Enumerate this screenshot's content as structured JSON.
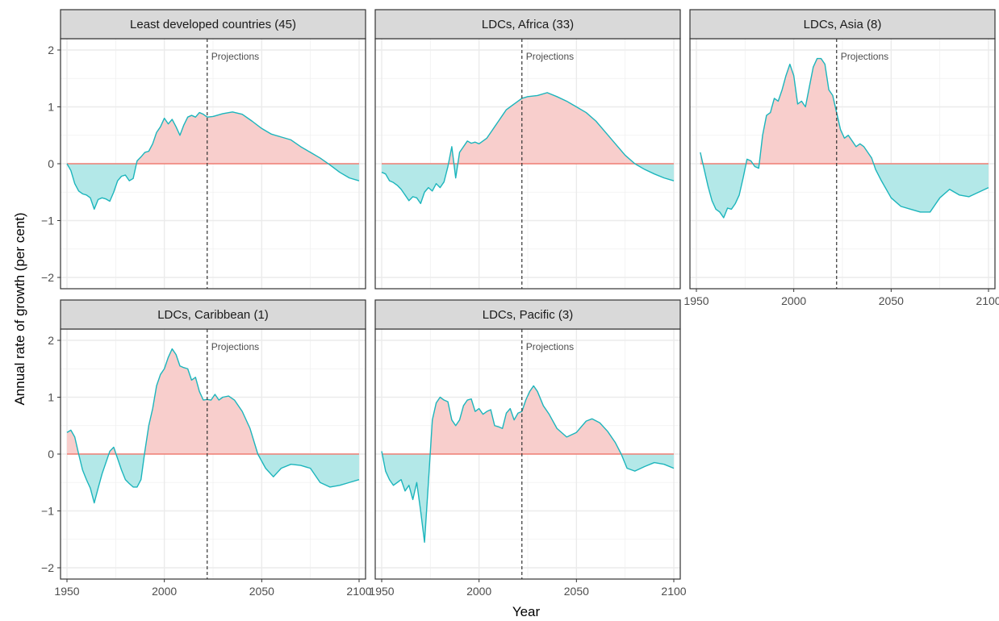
{
  "chart_data": {
    "type": "area",
    "xlabel": "Year",
    "ylabel": "Annual rate of growth (per cent)",
    "xlim": [
      1950,
      2100
    ],
    "ylim": [
      -2,
      2
    ],
    "x_ticks": [
      1950,
      2000,
      2050,
      2100
    ],
    "y_ticks": [
      -2,
      -1,
      0,
      1,
      2
    ],
    "projection_year": 2022,
    "projection_label": "Projections",
    "grid": true,
    "colors": {
      "positive_fill": "#F8CECC",
      "negative_fill": "#B3E8E8",
      "line": "#1CB5BC",
      "zero_line": "#F07F74",
      "strip_bg": "#D9D9D9"
    },
    "panels": [
      {
        "title": "Least developed countries (45)",
        "points": [
          [
            1950,
            0
          ],
          [
            1952,
            -0.12
          ],
          [
            1954,
            -0.35
          ],
          [
            1956,
            -0.48
          ],
          [
            1958,
            -0.53
          ],
          [
            1960,
            -0.55
          ],
          [
            1962,
            -0.6
          ],
          [
            1964,
            -0.8
          ],
          [
            1966,
            -0.63
          ],
          [
            1968,
            -0.6
          ],
          [
            1970,
            -0.62
          ],
          [
            1972,
            -0.66
          ],
          [
            1974,
            -0.5
          ],
          [
            1976,
            -0.3
          ],
          [
            1978,
            -0.22
          ],
          [
            1980,
            -0.2
          ],
          [
            1982,
            -0.3
          ],
          [
            1984,
            -0.26
          ],
          [
            1986,
            0.05
          ],
          [
            1988,
            0.12
          ],
          [
            1990,
            0.2
          ],
          [
            1992,
            0.22
          ],
          [
            1994,
            0.35
          ],
          [
            1996,
            0.55
          ],
          [
            1998,
            0.65
          ],
          [
            2000,
            0.8
          ],
          [
            2002,
            0.7
          ],
          [
            2004,
            0.78
          ],
          [
            2006,
            0.65
          ],
          [
            2008,
            0.5
          ],
          [
            2010,
            0.68
          ],
          [
            2012,
            0.82
          ],
          [
            2014,
            0.85
          ],
          [
            2016,
            0.82
          ],
          [
            2018,
            0.9
          ],
          [
            2020,
            0.87
          ],
          [
            2022,
            0.82
          ],
          [
            2025,
            0.83
          ],
          [
            2030,
            0.88
          ],
          [
            2035,
            0.91
          ],
          [
            2040,
            0.87
          ],
          [
            2045,
            0.75
          ],
          [
            2050,
            0.62
          ],
          [
            2055,
            0.52
          ],
          [
            2060,
            0.47
          ],
          [
            2065,
            0.42
          ],
          [
            2070,
            0.3
          ],
          [
            2075,
            0.2
          ],
          [
            2080,
            0.1
          ],
          [
            2085,
            -0.02
          ],
          [
            2090,
            -0.15
          ],
          [
            2095,
            -0.25
          ],
          [
            2100,
            -0.3
          ]
        ]
      },
      {
        "title": "LDCs, Africa (33)",
        "points": [
          [
            1950,
            -0.15
          ],
          [
            1952,
            -0.18
          ],
          [
            1954,
            -0.3
          ],
          [
            1956,
            -0.33
          ],
          [
            1958,
            -0.38
          ],
          [
            1960,
            -0.45
          ],
          [
            1962,
            -0.55
          ],
          [
            1964,
            -0.65
          ],
          [
            1966,
            -0.58
          ],
          [
            1968,
            -0.6
          ],
          [
            1970,
            -0.7
          ],
          [
            1972,
            -0.5
          ],
          [
            1974,
            -0.42
          ],
          [
            1976,
            -0.48
          ],
          [
            1978,
            -0.35
          ],
          [
            1980,
            -0.42
          ],
          [
            1982,
            -0.32
          ],
          [
            1984,
            -0.05
          ],
          [
            1986,
            0.3
          ],
          [
            1988,
            -0.25
          ],
          [
            1990,
            0.2
          ],
          [
            1992,
            0.3
          ],
          [
            1994,
            0.4
          ],
          [
            1996,
            0.36
          ],
          [
            1998,
            0.38
          ],
          [
            2000,
            0.35
          ],
          [
            2002,
            0.4
          ],
          [
            2004,
            0.45
          ],
          [
            2006,
            0.55
          ],
          [
            2008,
            0.65
          ],
          [
            2010,
            0.75
          ],
          [
            2012,
            0.85
          ],
          [
            2014,
            0.95
          ],
          [
            2016,
            1.0
          ],
          [
            2018,
            1.05
          ],
          [
            2020,
            1.1
          ],
          [
            2022,
            1.15
          ],
          [
            2025,
            1.18
          ],
          [
            2030,
            1.2
          ],
          [
            2035,
            1.25
          ],
          [
            2040,
            1.18
          ],
          [
            2045,
            1.1
          ],
          [
            2050,
            1.0
          ],
          [
            2055,
            0.9
          ],
          [
            2060,
            0.75
          ],
          [
            2065,
            0.55
          ],
          [
            2070,
            0.35
          ],
          [
            2075,
            0.15
          ],
          [
            2080,
            0.0
          ],
          [
            2085,
            -0.1
          ],
          [
            2090,
            -0.18
          ],
          [
            2095,
            -0.25
          ],
          [
            2100,
            -0.3
          ]
        ]
      },
      {
        "title": "LDCs, Asia (8)",
        "points": [
          [
            1952,
            0.2
          ],
          [
            1954,
            -0.1
          ],
          [
            1956,
            -0.4
          ],
          [
            1958,
            -0.65
          ],
          [
            1960,
            -0.8
          ],
          [
            1962,
            -0.85
          ],
          [
            1964,
            -0.95
          ],
          [
            1966,
            -0.78
          ],
          [
            1968,
            -0.8
          ],
          [
            1970,
            -0.7
          ],
          [
            1972,
            -0.55
          ],
          [
            1974,
            -0.25
          ],
          [
            1976,
            0.08
          ],
          [
            1978,
            0.05
          ],
          [
            1980,
            -0.05
          ],
          [
            1982,
            -0.08
          ],
          [
            1984,
            0.5
          ],
          [
            1986,
            0.85
          ],
          [
            1988,
            0.9
          ],
          [
            1990,
            1.15
          ],
          [
            1992,
            1.1
          ],
          [
            1994,
            1.3
          ],
          [
            1996,
            1.55
          ],
          [
            1998,
            1.75
          ],
          [
            2000,
            1.55
          ],
          [
            2002,
            1.05
          ],
          [
            2004,
            1.1
          ],
          [
            2006,
            1.0
          ],
          [
            2008,
            1.35
          ],
          [
            2010,
            1.7
          ],
          [
            2012,
            1.85
          ],
          [
            2014,
            1.85
          ],
          [
            2016,
            1.75
          ],
          [
            2018,
            1.3
          ],
          [
            2020,
            1.2
          ],
          [
            2022,
            0.9
          ],
          [
            2024,
            0.6
          ],
          [
            2026,
            0.45
          ],
          [
            2028,
            0.5
          ],
          [
            2030,
            0.4
          ],
          [
            2032,
            0.3
          ],
          [
            2034,
            0.35
          ],
          [
            2036,
            0.3
          ],
          [
            2038,
            0.2
          ],
          [
            2040,
            0.1
          ],
          [
            2042,
            -0.1
          ],
          [
            2045,
            -0.3
          ],
          [
            2050,
            -0.6
          ],
          [
            2055,
            -0.75
          ],
          [
            2060,
            -0.8
          ],
          [
            2065,
            -0.85
          ],
          [
            2070,
            -0.85
          ],
          [
            2075,
            -0.6
          ],
          [
            2080,
            -0.45
          ],
          [
            2085,
            -0.55
          ],
          [
            2090,
            -0.58
          ],
          [
            2095,
            -0.5
          ],
          [
            2100,
            -0.42
          ]
        ]
      },
      {
        "title": "LDCs, Caribbean (1)",
        "points": [
          [
            1950,
            0.38
          ],
          [
            1952,
            0.42
          ],
          [
            1954,
            0.3
          ],
          [
            1956,
            0.0
          ],
          [
            1958,
            -0.28
          ],
          [
            1960,
            -0.45
          ],
          [
            1962,
            -0.6
          ],
          [
            1964,
            -0.86
          ],
          [
            1966,
            -0.6
          ],
          [
            1968,
            -0.35
          ],
          [
            1970,
            -0.15
          ],
          [
            1972,
            0.05
          ],
          [
            1974,
            0.12
          ],
          [
            1976,
            -0.08
          ],
          [
            1978,
            -0.28
          ],
          [
            1980,
            -0.45
          ],
          [
            1982,
            -0.52
          ],
          [
            1984,
            -0.58
          ],
          [
            1986,
            -0.58
          ],
          [
            1988,
            -0.45
          ],
          [
            1990,
            0.05
          ],
          [
            1992,
            0.5
          ],
          [
            1994,
            0.8
          ],
          [
            1996,
            1.2
          ],
          [
            1998,
            1.4
          ],
          [
            2000,
            1.5
          ],
          [
            2002,
            1.7
          ],
          [
            2004,
            1.85
          ],
          [
            2006,
            1.75
          ],
          [
            2008,
            1.55
          ],
          [
            2010,
            1.52
          ],
          [
            2012,
            1.5
          ],
          [
            2014,
            1.3
          ],
          [
            2016,
            1.35
          ],
          [
            2018,
            1.1
          ],
          [
            2020,
            0.95
          ],
          [
            2022,
            0.96
          ],
          [
            2024,
            0.95
          ],
          [
            2026,
            1.05
          ],
          [
            2028,
            0.95
          ],
          [
            2030,
            1.0
          ],
          [
            2033,
            1.02
          ],
          [
            2036,
            0.95
          ],
          [
            2040,
            0.75
          ],
          [
            2044,
            0.45
          ],
          [
            2048,
            0.0
          ],
          [
            2052,
            -0.25
          ],
          [
            2056,
            -0.4
          ],
          [
            2060,
            -0.25
          ],
          [
            2065,
            -0.18
          ],
          [
            2070,
            -0.2
          ],
          [
            2075,
            -0.25
          ],
          [
            2080,
            -0.5
          ],
          [
            2085,
            -0.58
          ],
          [
            2090,
            -0.55
          ],
          [
            2095,
            -0.5
          ],
          [
            2100,
            -0.45
          ]
        ]
      },
      {
        "title": "LDCs, Pacific (3)",
        "points": [
          [
            1950,
            0.05
          ],
          [
            1952,
            -0.3
          ],
          [
            1954,
            -0.45
          ],
          [
            1956,
            -0.55
          ],
          [
            1958,
            -0.5
          ],
          [
            1960,
            -0.45
          ],
          [
            1962,
            -0.65
          ],
          [
            1964,
            -0.55
          ],
          [
            1966,
            -0.8
          ],
          [
            1968,
            -0.5
          ],
          [
            1970,
            -1.0
          ],
          [
            1972,
            -1.55
          ],
          [
            1974,
            -0.5
          ],
          [
            1976,
            0.6
          ],
          [
            1978,
            0.9
          ],
          [
            1980,
            1.0
          ],
          [
            1982,
            0.95
          ],
          [
            1984,
            0.92
          ],
          [
            1986,
            0.6
          ],
          [
            1988,
            0.5
          ],
          [
            1990,
            0.6
          ],
          [
            1992,
            0.85
          ],
          [
            1994,
            0.95
          ],
          [
            1996,
            0.97
          ],
          [
            1998,
            0.75
          ],
          [
            2000,
            0.8
          ],
          [
            2002,
            0.7
          ],
          [
            2004,
            0.75
          ],
          [
            2006,
            0.78
          ],
          [
            2008,
            0.5
          ],
          [
            2010,
            0.48
          ],
          [
            2012,
            0.45
          ],
          [
            2014,
            0.72
          ],
          [
            2016,
            0.8
          ],
          [
            2018,
            0.6
          ],
          [
            2020,
            0.72
          ],
          [
            2022,
            0.75
          ],
          [
            2024,
            0.95
          ],
          [
            2026,
            1.1
          ],
          [
            2028,
            1.2
          ],
          [
            2030,
            1.1
          ],
          [
            2033,
            0.85
          ],
          [
            2036,
            0.7
          ],
          [
            2040,
            0.45
          ],
          [
            2045,
            0.3
          ],
          [
            2050,
            0.38
          ],
          [
            2055,
            0.58
          ],
          [
            2058,
            0.62
          ],
          [
            2062,
            0.55
          ],
          [
            2066,
            0.4
          ],
          [
            2070,
            0.2
          ],
          [
            2073,
            0.0
          ],
          [
            2076,
            -0.25
          ],
          [
            2080,
            -0.3
          ],
          [
            2085,
            -0.22
          ],
          [
            2090,
            -0.15
          ],
          [
            2095,
            -0.18
          ],
          [
            2100,
            -0.25
          ]
        ]
      }
    ]
  }
}
